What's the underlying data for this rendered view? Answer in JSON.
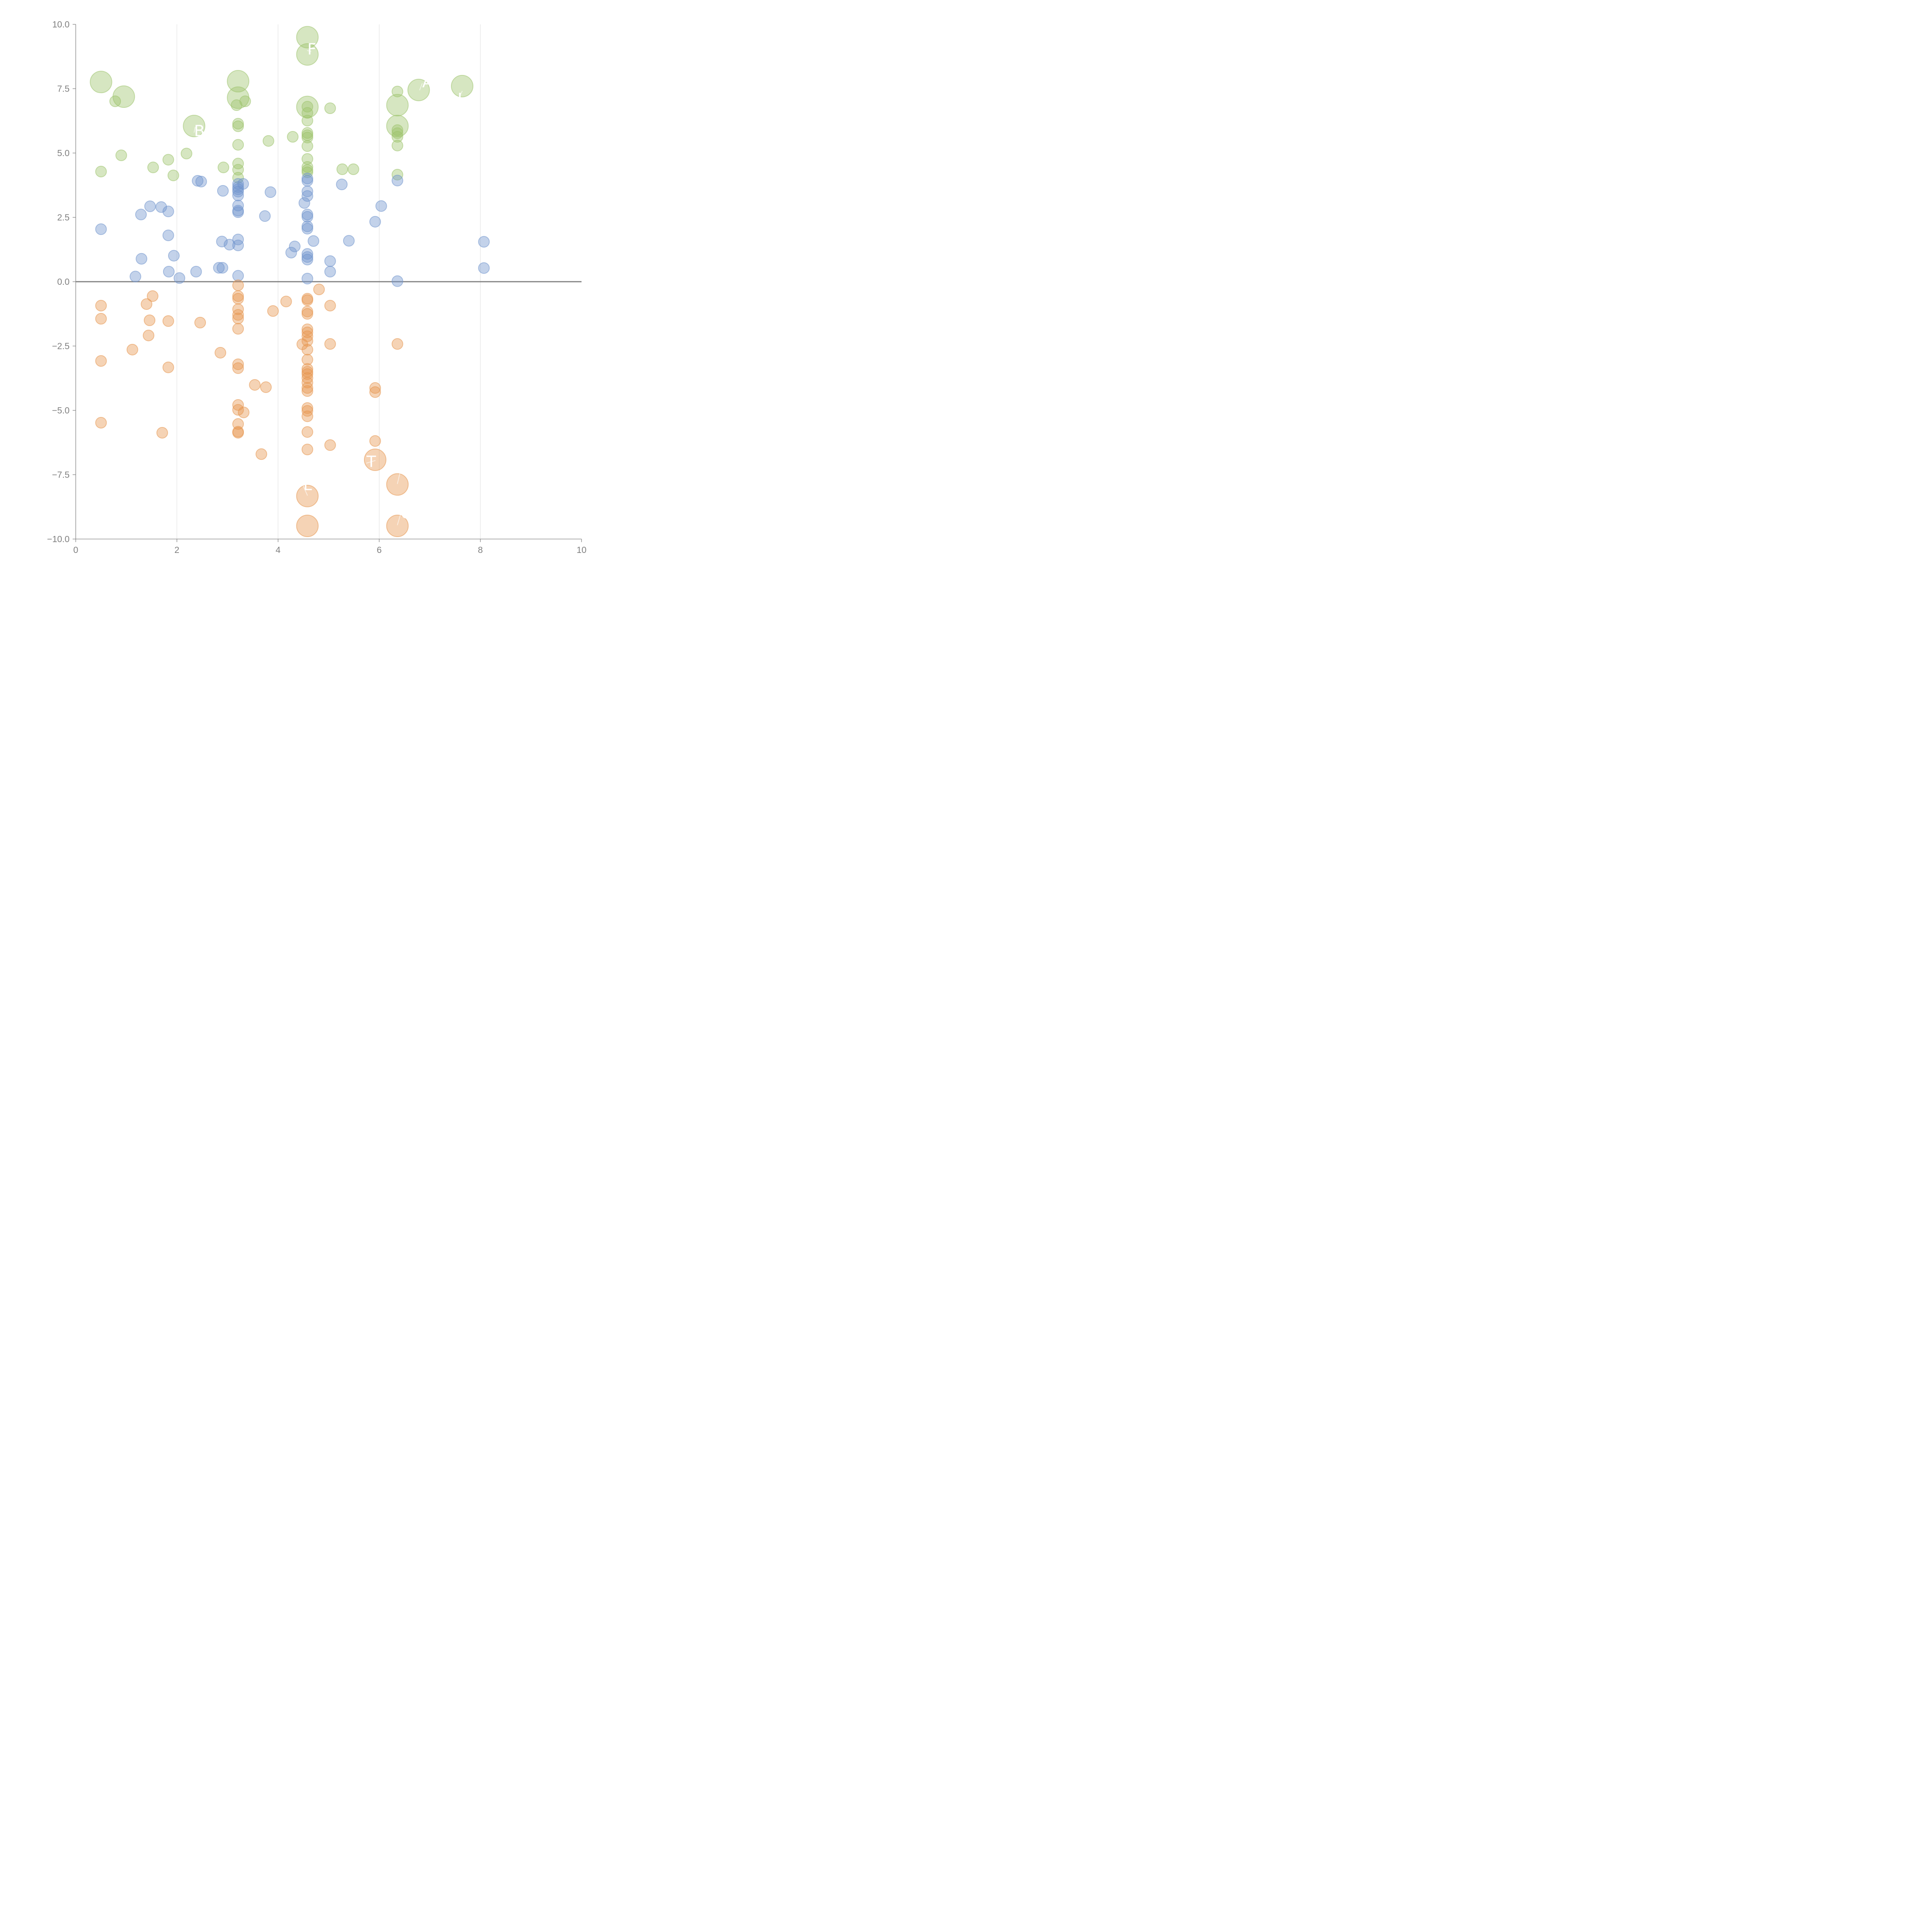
{
  "chart_data": {
    "type": "scatter",
    "title": "",
    "xlabel": "",
    "ylabel": "",
    "xlim": [
      0,
      10
    ],
    "ylim": [
      -10,
      10
    ],
    "x_ticks": [
      "0",
      "2",
      "4",
      "6",
      "8",
      "10"
    ],
    "y_ticks": [
      "10.0",
      "7.5",
      "5.0",
      "2.5",
      "0.0",
      "−2.5",
      "−5.0",
      "−7.5",
      "−10.0"
    ],
    "x_tick_values": [
      0,
      2,
      4,
      6,
      8,
      10
    ],
    "y_tick_values": [
      10,
      7.5,
      5,
      2.5,
      0,
      -2.5,
      -5,
      -7.5,
      -10
    ],
    "grid": "vertical",
    "zero_line": true,
    "legend": "none",
    "size_legend": {
      "small": "default",
      "large": "highlighted"
    },
    "series": [
      {
        "name": "green",
        "color": "#9dc36b",
        "points": [
          {
            "x": 0.5,
            "y": 7.76,
            "s": "large"
          },
          {
            "x": 0.78,
            "y": 7.01
          },
          {
            "x": 0.95,
            "y": 7.19,
            "s": "large"
          },
          {
            "x": 0.9,
            "y": 4.91
          },
          {
            "x": 0.5,
            "y": 4.28
          },
          {
            "x": 1.53,
            "y": 4.44
          },
          {
            "x": 1.83,
            "y": 4.74
          },
          {
            "x": 1.93,
            "y": 4.13
          },
          {
            "x": 2.19,
            "y": 4.98
          },
          {
            "x": 2.34,
            "y": 6.05,
            "s": "large"
          },
          {
            "x": 2.92,
            "y": 4.44
          },
          {
            "x": 3.21,
            "y": 7.79,
            "s": "large"
          },
          {
            "x": 3.21,
            "y": 7.15,
            "s": "large"
          },
          {
            "x": 3.35,
            "y": 7.01
          },
          {
            "x": 3.18,
            "y": 6.86
          },
          {
            "x": 3.21,
            "y": 6.14
          },
          {
            "x": 3.21,
            "y": 6.04
          },
          {
            "x": 3.21,
            "y": 5.32
          },
          {
            "x": 3.21,
            "y": 4.59
          },
          {
            "x": 3.21,
            "y": 4.35
          },
          {
            "x": 3.21,
            "y": 4.04
          },
          {
            "x": 3.81,
            "y": 5.47
          },
          {
            "x": 4.29,
            "y": 5.63
          },
          {
            "x": 4.58,
            "y": 9.5,
            "s": "large"
          },
          {
            "x": 4.58,
            "y": 8.83,
            "s": "large"
          },
          {
            "x": 4.58,
            "y": 6.79,
            "s": "large"
          },
          {
            "x": 4.58,
            "y": 6.8
          },
          {
            "x": 4.58,
            "y": 6.56
          },
          {
            "x": 4.58,
            "y": 6.26
          },
          {
            "x": 4.58,
            "y": 5.78
          },
          {
            "x": 4.58,
            "y": 5.69
          },
          {
            "x": 4.58,
            "y": 5.6
          },
          {
            "x": 4.58,
            "y": 5.27
          },
          {
            "x": 4.58,
            "y": 4.77
          },
          {
            "x": 4.58,
            "y": 4.46
          },
          {
            "x": 4.58,
            "y": 4.34
          },
          {
            "x": 4.58,
            "y": 4.25
          },
          {
            "x": 5.03,
            "y": 6.74
          },
          {
            "x": 5.27,
            "y": 4.37
          },
          {
            "x": 5.49,
            "y": 4.37
          },
          {
            "x": 6.36,
            "y": 7.39
          },
          {
            "x": 6.36,
            "y": 6.86,
            "s": "large"
          },
          {
            "x": 6.36,
            "y": 6.05,
            "s": "large"
          },
          {
            "x": 6.36,
            "y": 5.89
          },
          {
            "x": 6.36,
            "y": 5.77
          },
          {
            "x": 6.36,
            "y": 5.63
          },
          {
            "x": 6.36,
            "y": 5.29
          },
          {
            "x": 6.36,
            "y": 4.16
          },
          {
            "x": 6.78,
            "y": 7.45,
            "s": "large"
          },
          {
            "x": 7.64,
            "y": 7.6,
            "s": "large"
          }
        ]
      },
      {
        "name": "blue",
        "color": "#6f93cc",
        "points": [
          {
            "x": 0.5,
            "y": 2.04
          },
          {
            "x": 1.18,
            "y": 0.2
          },
          {
            "x": 1.3,
            "y": 0.89
          },
          {
            "x": 1.29,
            "y": 2.61
          },
          {
            "x": 1.47,
            "y": 2.93
          },
          {
            "x": 1.69,
            "y": 2.9
          },
          {
            "x": 1.83,
            "y": 2.73
          },
          {
            "x": 1.83,
            "y": 1.8
          },
          {
            "x": 1.84,
            "y": 0.39
          },
          {
            "x": 1.94,
            "y": 1.01
          },
          {
            "x": 2.05,
            "y": 0.14
          },
          {
            "x": 2.38,
            "y": 0.39
          },
          {
            "x": 2.41,
            "y": 3.92
          },
          {
            "x": 2.48,
            "y": 3.89
          },
          {
            "x": 2.83,
            "y": 0.54
          },
          {
            "x": 2.9,
            "y": 0.54
          },
          {
            "x": 2.89,
            "y": 1.56
          },
          {
            "x": 3.04,
            "y": 1.44
          },
          {
            "x": 2.91,
            "y": 3.53
          },
          {
            "x": 3.21,
            "y": 0.23
          },
          {
            "x": 3.21,
            "y": 1.64
          },
          {
            "x": 3.21,
            "y": 1.41
          },
          {
            "x": 3.21,
            "y": 2.7
          },
          {
            "x": 3.21,
            "y": 2.76
          },
          {
            "x": 3.21,
            "y": 2.96
          },
          {
            "x": 3.21,
            "y": 3.35
          },
          {
            "x": 3.21,
            "y": 3.5
          },
          {
            "x": 3.21,
            "y": 3.59
          },
          {
            "x": 3.21,
            "y": 3.68
          },
          {
            "x": 3.21,
            "y": 3.8
          },
          {
            "x": 3.31,
            "y": 3.8
          },
          {
            "x": 3.74,
            "y": 2.55
          },
          {
            "x": 3.85,
            "y": 3.48
          },
          {
            "x": 4.26,
            "y": 1.13
          },
          {
            "x": 4.33,
            "y": 1.37
          },
          {
            "x": 4.52,
            "y": 3.06
          },
          {
            "x": 4.58,
            "y": 0.12
          },
          {
            "x": 4.58,
            "y": 0.86
          },
          {
            "x": 4.58,
            "y": 0.96
          },
          {
            "x": 4.58,
            "y": 1.08
          },
          {
            "x": 4.7,
            "y": 1.58
          },
          {
            "x": 4.58,
            "y": 2.06
          },
          {
            "x": 4.58,
            "y": 2.15
          },
          {
            "x": 4.58,
            "y": 2.52
          },
          {
            "x": 4.58,
            "y": 2.61
          },
          {
            "x": 4.58,
            "y": 3.33
          },
          {
            "x": 4.58,
            "y": 3.51
          },
          {
            "x": 4.58,
            "y": 3.92
          },
          {
            "x": 4.58,
            "y": 4.01
          },
          {
            "x": 5.03,
            "y": 0.39
          },
          {
            "x": 5.03,
            "y": 0.8
          },
          {
            "x": 5.26,
            "y": 3.78
          },
          {
            "x": 5.4,
            "y": 1.59
          },
          {
            "x": 5.92,
            "y": 2.33
          },
          {
            "x": 6.04,
            "y": 2.94
          },
          {
            "x": 6.36,
            "y": 0.02
          },
          {
            "x": 6.36,
            "y": 3.93
          },
          {
            "x": 8.07,
            "y": 0.53
          },
          {
            "x": 8.07,
            "y": 1.55
          }
        ]
      },
      {
        "name": "orange",
        "color": "#e6964f",
        "points": [
          {
            "x": 0.5,
            "y": -0.93
          },
          {
            "x": 0.5,
            "y": -1.44
          },
          {
            "x": 0.5,
            "y": -3.08
          },
          {
            "x": 0.5,
            "y": -5.48
          },
          {
            "x": 1.12,
            "y": -2.64
          },
          {
            "x": 1.4,
            "y": -0.87
          },
          {
            "x": 1.52,
            "y": -0.56
          },
          {
            "x": 1.46,
            "y": -1.5
          },
          {
            "x": 1.44,
            "y": -2.09
          },
          {
            "x": 1.71,
            "y": -5.87
          },
          {
            "x": 1.83,
            "y": -1.53
          },
          {
            "x": 1.83,
            "y": -3.33
          },
          {
            "x": 2.46,
            "y": -1.59
          },
          {
            "x": 2.86,
            "y": -2.76
          },
          {
            "x": 3.21,
            "y": -0.14
          },
          {
            "x": 3.21,
            "y": -0.56
          },
          {
            "x": 3.21,
            "y": -0.66
          },
          {
            "x": 3.21,
            "y": -1.07
          },
          {
            "x": 3.21,
            "y": -1.29
          },
          {
            "x": 3.21,
            "y": -1.43
          },
          {
            "x": 3.21,
            "y": -1.83
          },
          {
            "x": 3.21,
            "y": -3.21
          },
          {
            "x": 3.21,
            "y": -3.36
          },
          {
            "x": 3.21,
            "y": -4.79
          },
          {
            "x": 3.21,
            "y": -4.98
          },
          {
            "x": 3.32,
            "y": -5.08
          },
          {
            "x": 3.21,
            "y": -5.53
          },
          {
            "x": 3.21,
            "y": -5.83
          },
          {
            "x": 3.21,
            "y": -5.87
          },
          {
            "x": 3.54,
            "y": -4.01
          },
          {
            "x": 3.76,
            "y": -4.1
          },
          {
            "x": 3.67,
            "y": -6.7
          },
          {
            "x": 3.9,
            "y": -1.14
          },
          {
            "x": 4.16,
            "y": -0.77
          },
          {
            "x": 4.48,
            "y": -2.43
          },
          {
            "x": 4.58,
            "y": -0.66
          },
          {
            "x": 4.58,
            "y": -0.72
          },
          {
            "x": 4.58,
            "y": -1.16
          },
          {
            "x": 4.58,
            "y": -1.25
          },
          {
            "x": 4.58,
            "y": -1.85
          },
          {
            "x": 4.58,
            "y": -1.97
          },
          {
            "x": 4.58,
            "y": -2.12
          },
          {
            "x": 4.58,
            "y": -2.3
          },
          {
            "x": 4.58,
            "y": -2.64
          },
          {
            "x": 4.58,
            "y": -3.03
          },
          {
            "x": 4.58,
            "y": -3.39
          },
          {
            "x": 4.58,
            "y": -3.5
          },
          {
            "x": 4.58,
            "y": -3.59
          },
          {
            "x": 4.58,
            "y": -3.74
          },
          {
            "x": 4.58,
            "y": -3.92
          },
          {
            "x": 4.58,
            "y": -4.13
          },
          {
            "x": 4.58,
            "y": -4.25
          },
          {
            "x": 4.58,
            "y": -4.91
          },
          {
            "x": 4.58,
            "y": -5.02
          },
          {
            "x": 4.58,
            "y": -5.23
          },
          {
            "x": 4.58,
            "y": -5.84
          },
          {
            "x": 4.58,
            "y": -6.52
          },
          {
            "x": 4.58,
            "y": -8.33,
            "s": "large"
          },
          {
            "x": 4.58,
            "y": -9.49,
            "s": "large"
          },
          {
            "x": 4.81,
            "y": -0.3
          },
          {
            "x": 5.03,
            "y": -0.93
          },
          {
            "x": 5.03,
            "y": -2.42
          },
          {
            "x": 5.03,
            "y": -6.35
          },
          {
            "x": 5.92,
            "y": -4.13
          },
          {
            "x": 5.92,
            "y": -4.29
          },
          {
            "x": 5.92,
            "y": -6.19
          },
          {
            "x": 5.92,
            "y": -6.92,
            "s": "large"
          },
          {
            "x": 6.36,
            "y": -2.42
          },
          {
            "x": 6.36,
            "y": -7.88,
            "s": "large"
          },
          {
            "x": 6.36,
            "y": -9.49,
            "s": "large"
          }
        ]
      }
    ],
    "annotations": [
      {
        "text": "F",
        "x": 4.58,
        "y": 8.83,
        "ax": 4.65,
        "ay": 8.95
      },
      {
        "text": "BM",
        "x": 2.34,
        "y": 5.65,
        "ax": 2.36,
        "ay": 6.0
      },
      {
        "text": "AC",
        "x": 6.85,
        "y": 7.55,
        "ax": 6.8,
        "ay": 7.45
      },
      {
        "text": "L",
        "x": 7.55,
        "y": 6.9,
        "ax": 7.64,
        "ay": 7.4
      },
      {
        "text": "T",
        "x": 5.75,
        "y": -7.2,
        "ax": 5.92,
        "ay": -6.95
      },
      {
        "text": "C",
        "x": 6.42,
        "y": -7.5,
        "ax": 6.36,
        "ay": -7.85
      },
      {
        "text": "C",
        "x": 6.42,
        "y": -9.2,
        "ax": 6.36,
        "ay": -9.45
      },
      {
        "text": "L",
        "x": 4.5,
        "y": -8.1,
        "ax": 4.58,
        "ay": -8.3
      }
    ]
  }
}
